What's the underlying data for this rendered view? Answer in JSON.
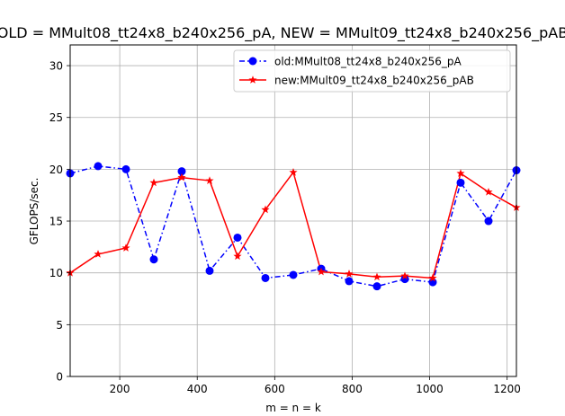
{
  "chart_data": {
    "type": "line",
    "title": "OLD = MMult08_tt24x8_b240x256_pA, NEW = MMult09_tt24x8_b240x256_pAB",
    "xlabel": "m = n = k",
    "ylabel": "GFLOPS/sec.",
    "xlim": [
      72,
      1224
    ],
    "ylim": [
      0,
      32
    ],
    "xticks": [
      200,
      400,
      600,
      800,
      1000,
      1200
    ],
    "xtick_labels": [
      "200",
      "400",
      "600",
      "800",
      "1000",
      "1200"
    ],
    "yticks": [
      0,
      5,
      10,
      15,
      20,
      25,
      30
    ],
    "ytick_labels": [
      "0",
      "5",
      "10",
      "15",
      "20",
      "25",
      "30"
    ],
    "grid": true,
    "legend_position": "top-right",
    "x": [
      72,
      144,
      216,
      288,
      360,
      432,
      504,
      576,
      648,
      720,
      792,
      864,
      936,
      1008,
      1080,
      1152,
      1224
    ],
    "series": [
      {
        "name": "old:MMult08_tt24x8_b240x256_pA",
        "color": "#0000ff",
        "marker": "circle",
        "linestyle": "dash-dot",
        "values": [
          19.6,
          20.3,
          20.0,
          11.3,
          19.8,
          10.2,
          13.4,
          9.5,
          9.8,
          10.4,
          9.2,
          8.7,
          9.4,
          9.1,
          18.7,
          15.0,
          19.9
        ]
      },
      {
        "name": "new:MMult09_tt24x8_b240x256_pAB",
        "color": "#ff0000",
        "marker": "star",
        "linestyle": "solid",
        "values": [
          10.0,
          11.8,
          12.4,
          18.7,
          19.2,
          18.9,
          11.6,
          16.1,
          19.7,
          10.1,
          9.9,
          9.6,
          9.7,
          9.5,
          19.6,
          17.8,
          16.3
        ]
      }
    ]
  }
}
